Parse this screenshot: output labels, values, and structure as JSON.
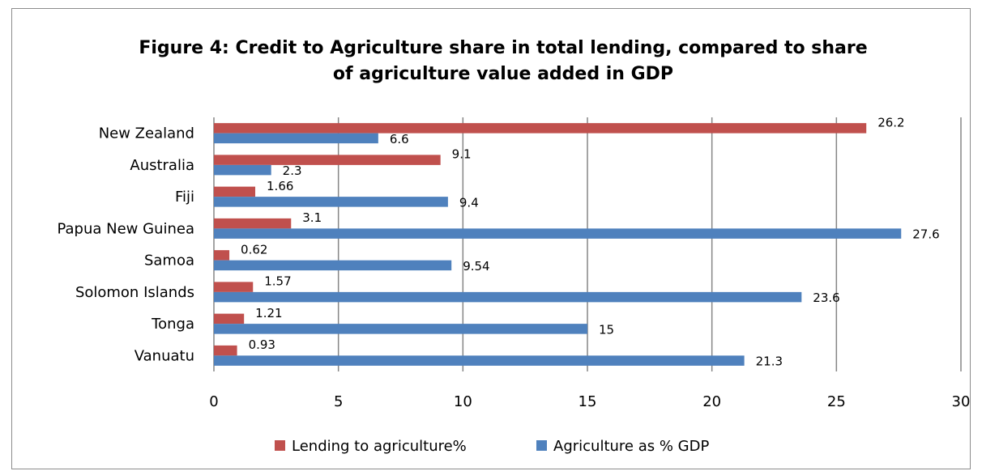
{
  "chart_data": {
    "type": "bar",
    "orientation": "horizontal",
    "title": "Figure 4: Credit to Agriculture share in total lending, compared to share of agriculture value added in GDP",
    "title_lines": [
      "Figure 4: Credit to Agriculture share in total lending, compared to share",
      "of agriculture value added in GDP"
    ],
    "categories": [
      "New Zealand",
      "Australia",
      "Fiji",
      "Papua New Guinea",
      "Samoa",
      "Solomon Islands",
      "Tonga",
      "Vanuatu"
    ],
    "series": [
      {
        "name": "Lending to agriculture%",
        "color": "#c0504d",
        "values": [
          26.2,
          9.1,
          1.66,
          3.1,
          0.62,
          1.57,
          1.21,
          0.93
        ],
        "labels": [
          "26.2",
          "9.1",
          "1.66",
          "3.1",
          "0.62",
          "1.57",
          "1.21",
          "0.93"
        ]
      },
      {
        "name": "Agriculture as % GDP",
        "color": "#4f81bd",
        "values": [
          6.6,
          2.3,
          9.4,
          27.6,
          9.54,
          23.6,
          15,
          21.3
        ],
        "labels": [
          "6.6",
          "2.3",
          "9.4",
          "27.6",
          "9.54",
          "23.6",
          "15",
          "21.3"
        ]
      }
    ],
    "xlim": [
      0,
      30
    ],
    "xticks": [
      "0",
      "5",
      "10",
      "15",
      "20",
      "25",
      "30"
    ],
    "xtick_values": [
      0,
      5,
      10,
      15,
      20,
      25,
      30
    ],
    "grid": "vertical",
    "gridline_color": "#868686",
    "legend_position": "bottom"
  }
}
